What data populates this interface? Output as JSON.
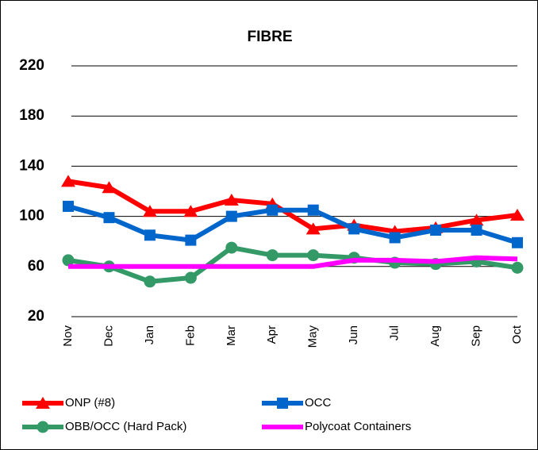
{
  "chart_data": {
    "type": "line",
    "title": "FIBRE",
    "categories": [
      "Nov",
      "Dec",
      "Jan",
      "Feb",
      "Mar",
      "Apr",
      "May",
      "Jun",
      "Jul",
      "Aug",
      "Sep",
      "Oct"
    ],
    "series": [
      {
        "name": "ONP (#8)",
        "color": "#ff0000",
        "marker": "triangle",
        "values": [
          128,
          123,
          104,
          104,
          113,
          110,
          90,
          93,
          88,
          91,
          97,
          101
        ]
      },
      {
        "name": "OCC",
        "color": "#0066cc",
        "marker": "square",
        "values": [
          108,
          99,
          85,
          81,
          100,
          105,
          105,
          90,
          83,
          89,
          89,
          79
        ]
      },
      {
        "name": "OBB/OCC (Hard Pack)",
        "color": "#339966",
        "marker": "circle",
        "values": [
          65,
          60,
          48,
          51,
          75,
          69,
          69,
          67,
          63,
          62,
          64,
          59
        ]
      },
      {
        "name": "Polycoat Containers",
        "color": "#ff00ff",
        "marker": "none",
        "values": [
          60,
          60,
          60,
          60,
          60,
          60,
          60,
          65,
          65,
          64,
          67,
          66
        ]
      }
    ],
    "ylim": [
      20,
      220
    ],
    "yticks": [
      20,
      60,
      100,
      140,
      180,
      220
    ],
    "grid": true
  }
}
